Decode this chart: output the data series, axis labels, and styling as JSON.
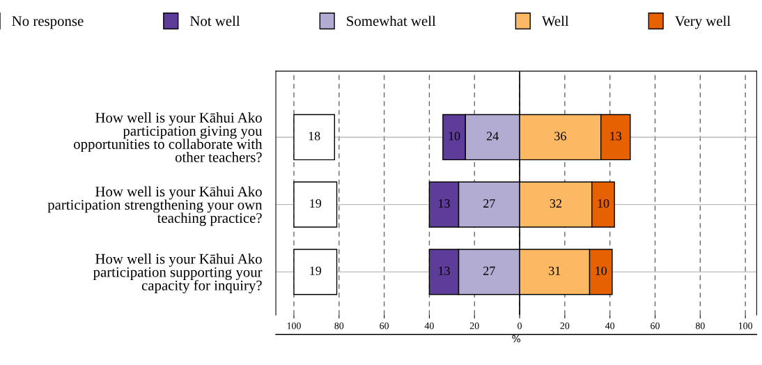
{
  "chart_data": {
    "type": "bar",
    "orientation": "horizontal",
    "xlabel": "%",
    "categories": [
      "How well is your Kāhui Ako\nparticipation giving you\nopportunities to collaborate with\nother teachers?",
      "How well is your Kāhui Ako\nparticipation strengthening your own\nteaching practice?",
      "How well is your Kāhui Ako\nparticipation supporting your\ncapacity for inquiry?"
    ],
    "series": [
      {
        "name": "No response",
        "color": "#ffffff",
        "base": [
          -100,
          -100,
          -100
        ],
        "values": [
          18,
          19,
          19
        ]
      },
      {
        "name": "Not well",
        "color": "#5e3c99",
        "base": [
          -34,
          -40,
          -40
        ],
        "values": [
          10,
          13,
          13
        ]
      },
      {
        "name": "Somewhat well",
        "color": "#b2abd2",
        "base": [
          -24,
          -27,
          -27
        ],
        "values": [
          24,
          27,
          27
        ]
      },
      {
        "name": "Well",
        "color": "#fdb863",
        "base": [
          0,
          0,
          0
        ],
        "values": [
          36,
          32,
          31
        ]
      },
      {
        "name": "Very well",
        "color": "#e66101",
        "base": [
          36,
          32,
          31
        ],
        "values": [
          13,
          10,
          10
        ]
      }
    ],
    "xlim": [
      -108,
      105
    ],
    "xticks": [
      {
        "value": -100,
        "label": "100"
      },
      {
        "value": -80,
        "label": "80"
      },
      {
        "value": -60,
        "label": "60"
      },
      {
        "value": -40,
        "label": "40"
      },
      {
        "value": -20,
        "label": "20"
      },
      0,
      20,
      40,
      60,
      80,
      100
    ],
    "ref_lines": [
      {
        "axis": "x",
        "value": 0,
        "color": "#000000",
        "line_style": "solid"
      }
    ],
    "grid": true,
    "data_labels": true,
    "legend": "top"
  }
}
